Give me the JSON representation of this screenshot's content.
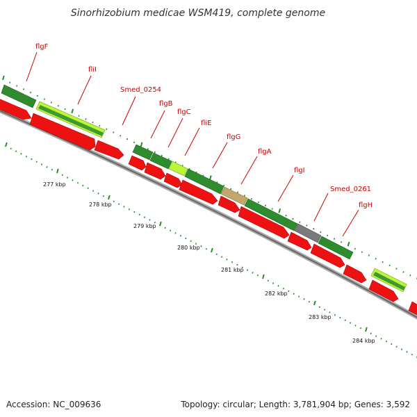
{
  "title": "Sinorhizobium medicae WSM419, complete genome",
  "accession": "Accession: NC_009636",
  "topology": "Topology: circular; Length: 3,781,904 bp; Genes: 3,592",
  "colors": {
    "cds_red": "#ee1111",
    "gene_green": "#2e8b2e",
    "gene_lightgreen": "#bdf53a",
    "gene_tan": "#c2a86a",
    "gene_gray": "#7a7a7a",
    "label_red": "#cc0000",
    "backbone": "#888888",
    "tick_green": "#1f8f1f"
  },
  "gene_labels": [
    "flgF",
    "fliI",
    "Smed_0254",
    "flgB",
    "flgC",
    "fliE",
    "flgG",
    "flgA",
    "flgI",
    "Smed_0261",
    "flgH"
  ],
  "kbp_labels": [
    "277 kbp",
    "278 kbp",
    "279 kbp",
    "280 kbp",
    "281 kbp",
    "282 kbp",
    "283 kbp",
    "284 kbp"
  ]
}
